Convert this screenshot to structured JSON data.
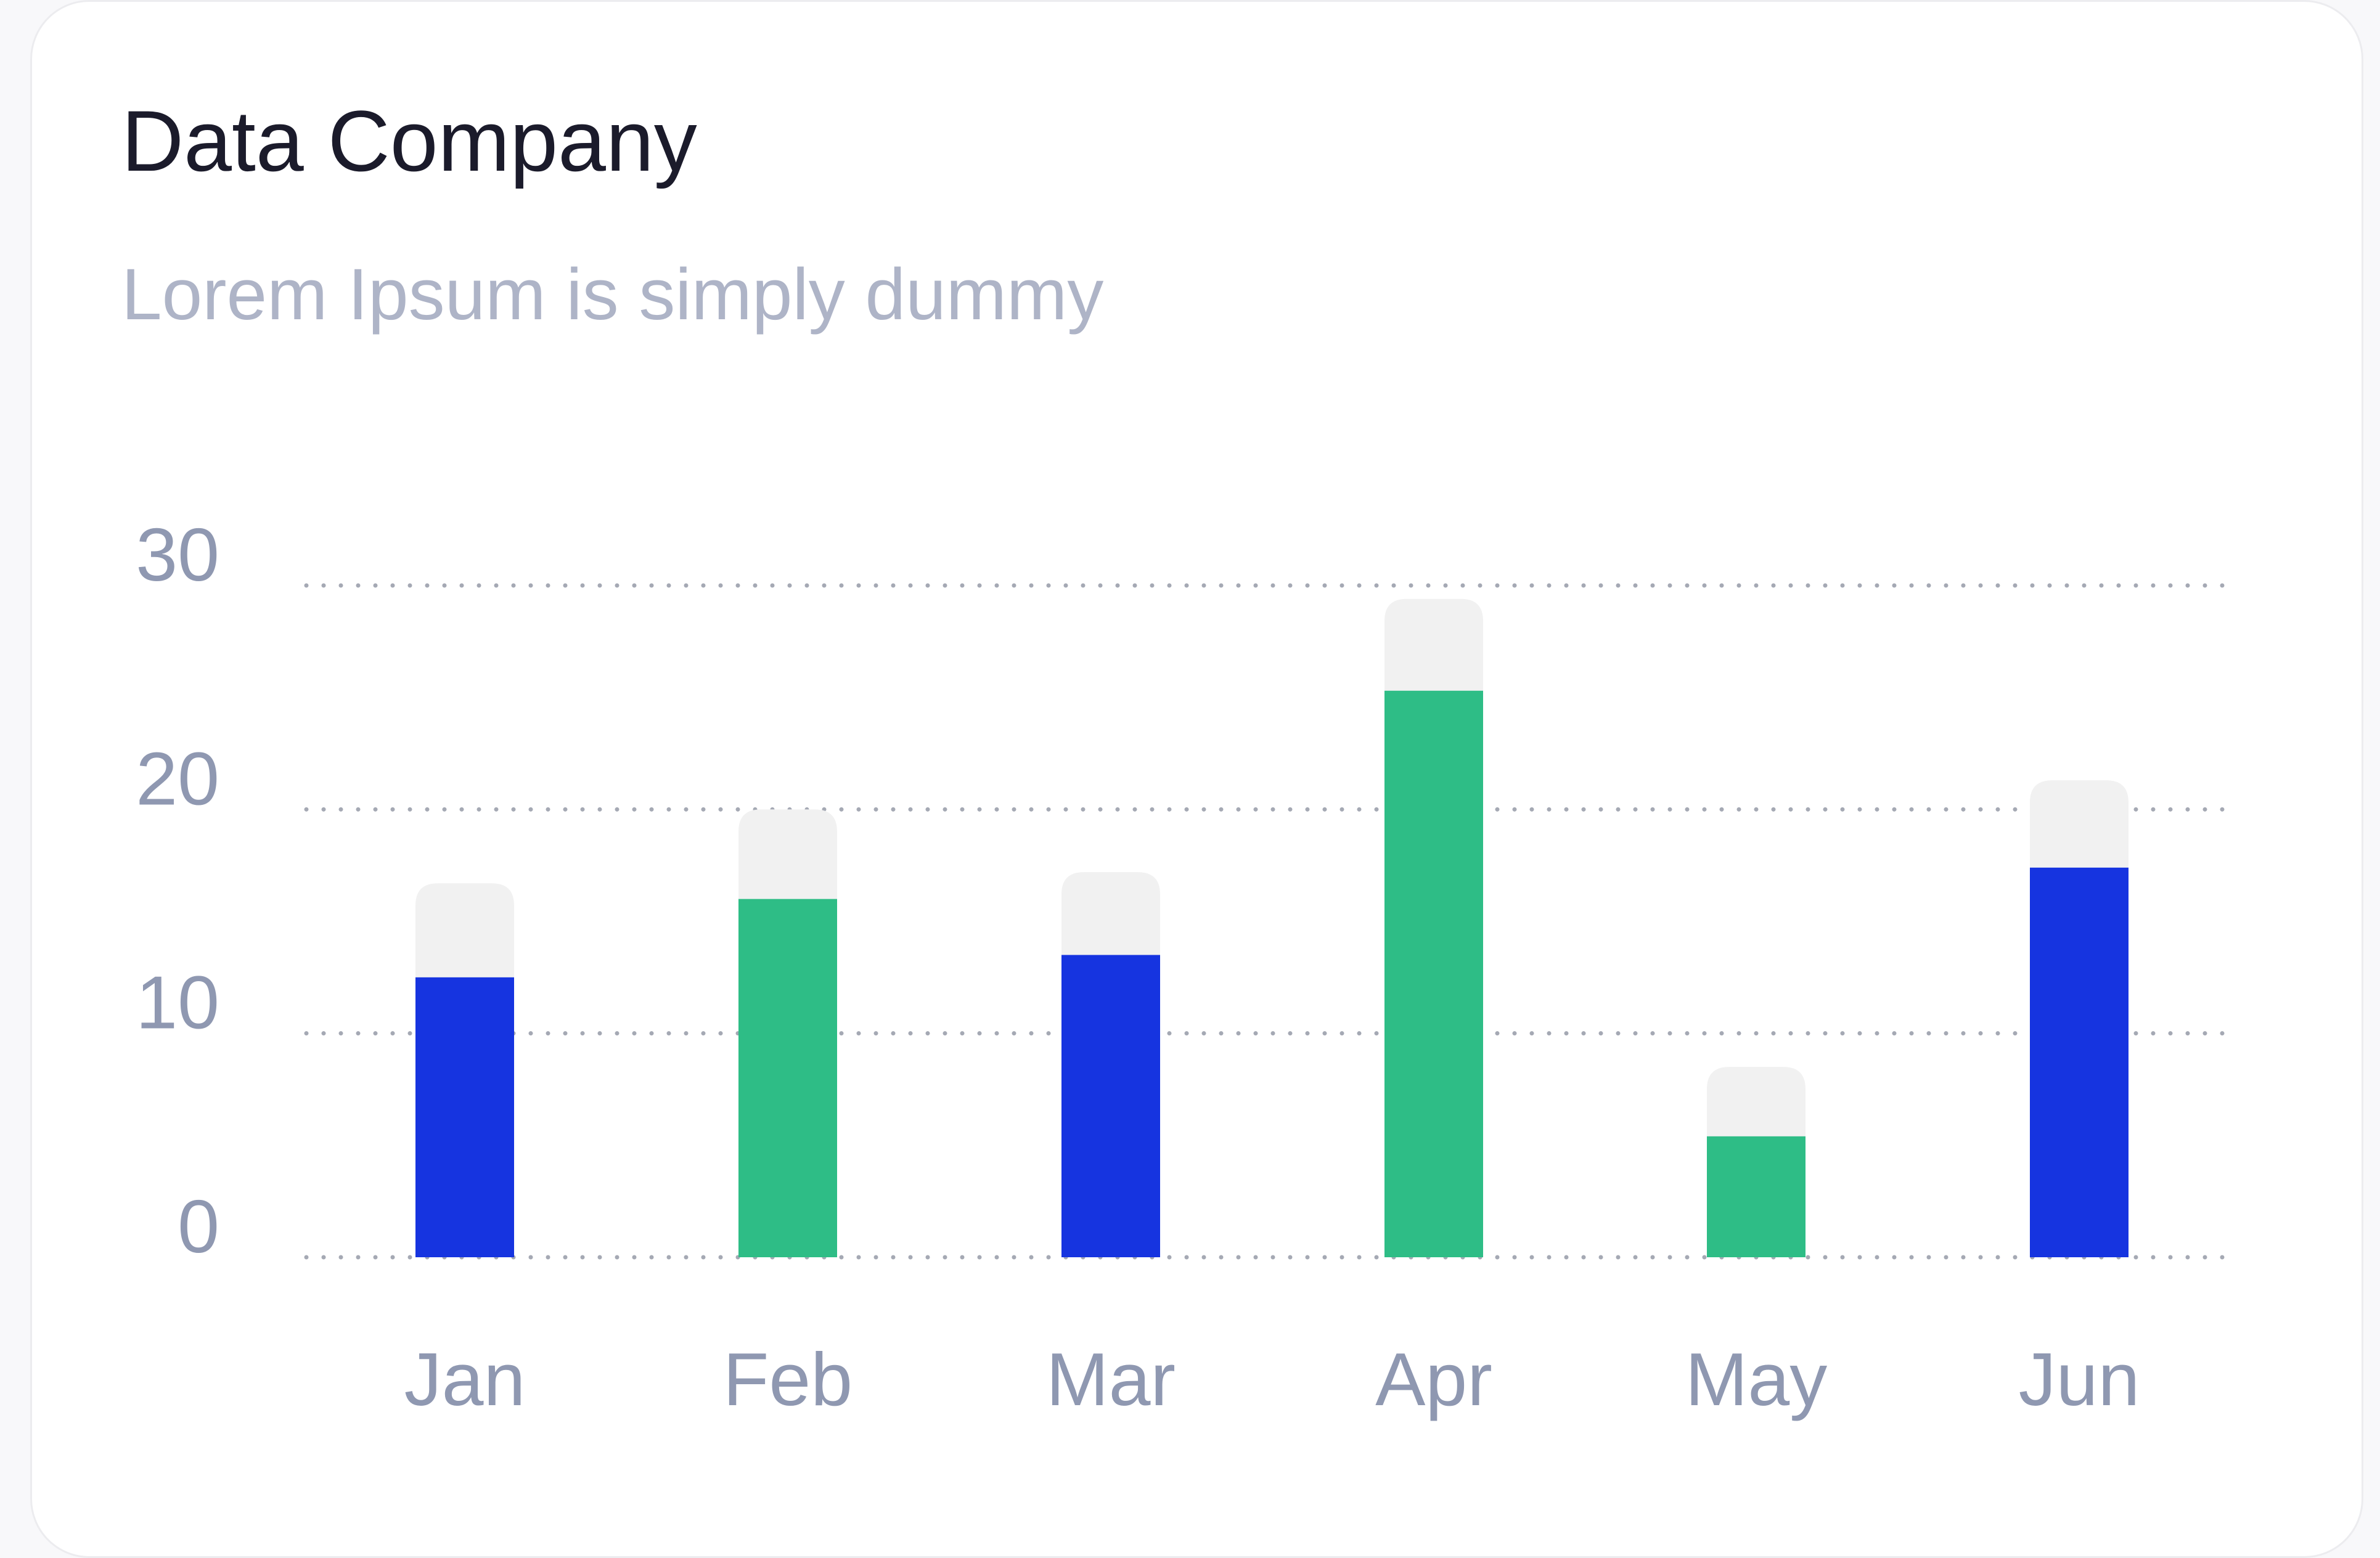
{
  "card": {
    "title": "Data Company",
    "subtitle": "Lorem Ipsum is simply dummy"
  },
  "colors": {
    "blue": "#1634e0",
    "green": "#2ebd86",
    "track": "#f1f1f1",
    "grid": "#a5a9b4",
    "tick": "#8f98b1"
  },
  "chart_data": {
    "type": "bar",
    "categories": [
      "Jan",
      "Feb",
      "Mar",
      "Apr",
      "May",
      "Jun"
    ],
    "values": [
      12.5,
      16,
      13.5,
      25.3,
      5.4,
      17.4
    ],
    "background_values": [
      16.7,
      20,
      17.2,
      29.4,
      8.5,
      21.3
    ],
    "colors": [
      "blue",
      "green",
      "blue",
      "green",
      "green",
      "blue"
    ],
    "yticks": [
      0,
      10,
      20,
      30
    ],
    "ylim": [
      0,
      30
    ],
    "grid": true
  }
}
